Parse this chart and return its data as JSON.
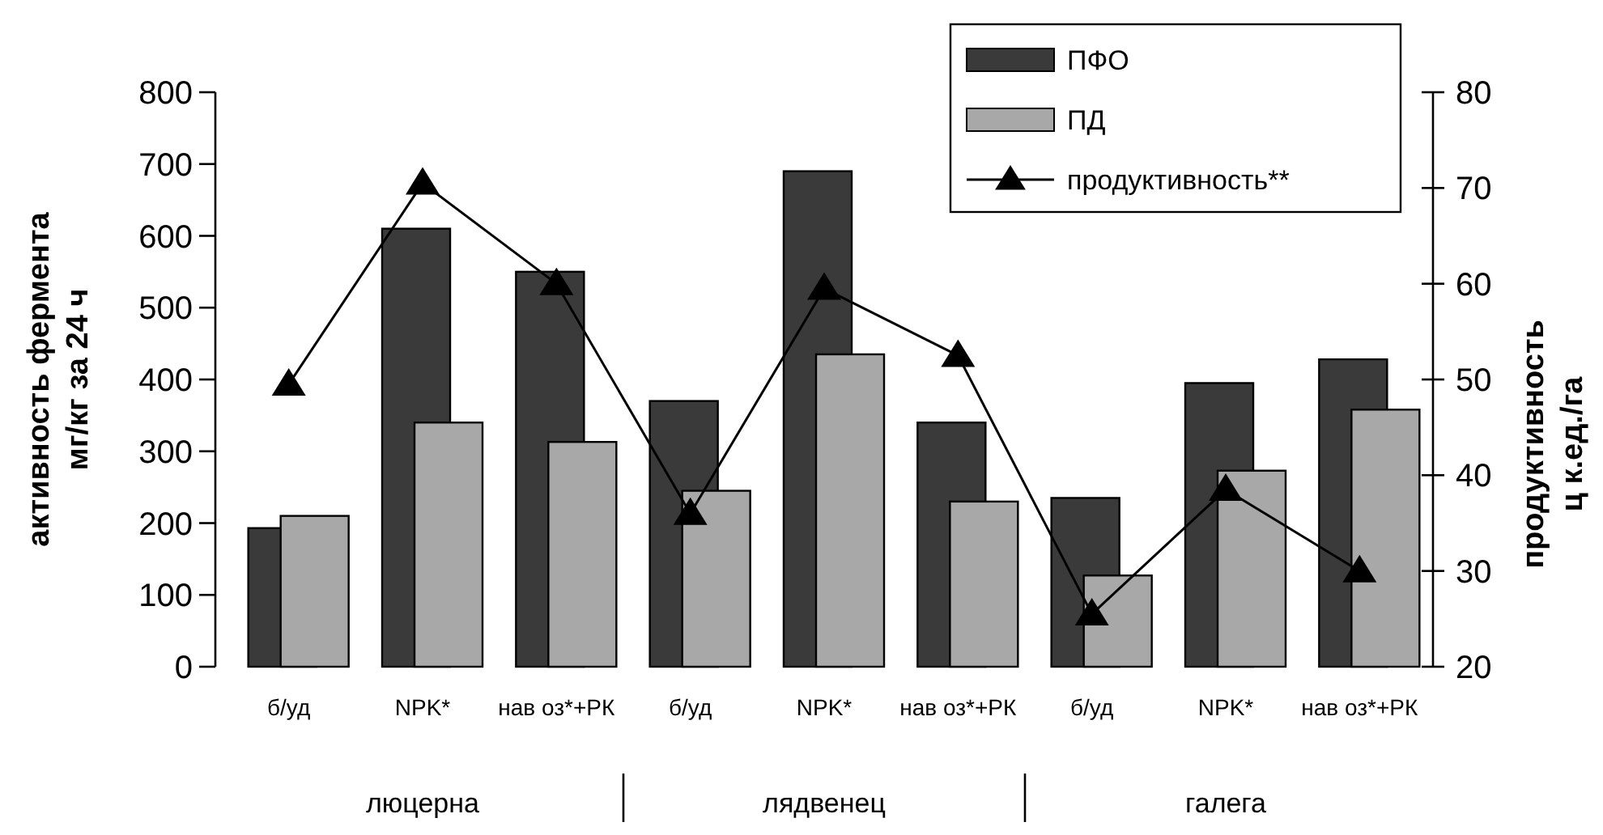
{
  "chart_data": {
    "type": "bar",
    "categories": [
      "б/уд",
      "NPK*",
      "нав оз*+РК",
      "б/уд",
      "NPK*",
      "нав оз*+РК",
      "б/уд",
      "NPK*",
      "нав оз*+РК"
    ],
    "ylabel": "активность фермента мг/кг за 24 ч",
    "y2label": "продуктивность ц к.ед./га",
    "ylim": [
      0,
      800
    ],
    "yticks": [
      0,
      100,
      200,
      300,
      400,
      500,
      600,
      700,
      800
    ],
    "y2lim": [
      20,
      80
    ],
    "y2ticks": [
      20,
      30,
      40,
      50,
      60,
      70,
      80
    ],
    "series": [
      {
        "name": "ПФО",
        "color": "#3a3a3a",
        "values": [
          193,
          610,
          550,
          370,
          690,
          340,
          235,
          395,
          428
        ]
      },
      {
        "name": "ПД",
        "color": "#a8a8a8",
        "values": [
          210,
          340,
          313,
          245,
          435,
          230,
          127,
          273,
          358
        ]
      },
      {
        "name": "продуктивность**",
        "type": "line",
        "axis": "y2",
        "color": "#000000",
        "marker": "triangle",
        "values": [
          49.5,
          70.5,
          60,
          36,
          59.5,
          52.5,
          25.5,
          38.5,
          30
        ]
      }
    ],
    "annotations": [
      "люцерна",
      "лядвенец",
      "галега"
    ],
    "legend": "top right",
    "grid": false
  }
}
